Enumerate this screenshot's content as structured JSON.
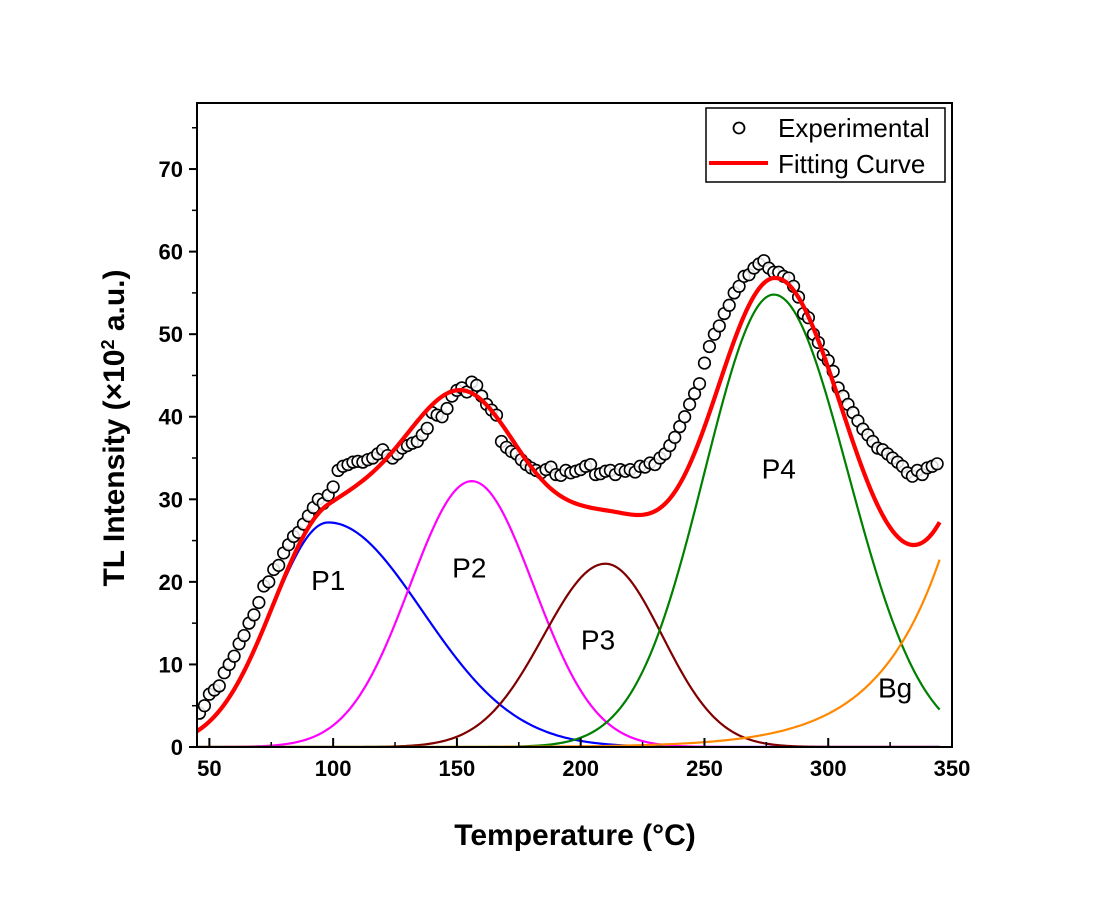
{
  "chart_data": {
    "type": "line",
    "xlabel": "Temperature (°C)",
    "ylabel": {
      "main": "TL Intensity (",
      "mult": "×10",
      "sup": "2",
      "unit": " a.u.)"
    },
    "xlim": [
      45,
      350
    ],
    "ylim": [
      0,
      78
    ],
    "xticks": [
      50,
      100,
      150,
      200,
      250,
      300,
      350
    ],
    "yticks": [
      0,
      10,
      20,
      30,
      40,
      50,
      60,
      70
    ],
    "legend": {
      "position": "top-right",
      "entries": [
        {
          "label": "Experimental",
          "style": "open-circle"
        },
        {
          "label": "Fitting Curve",
          "style": "red-line"
        }
      ]
    },
    "series": [
      {
        "name": "P1",
        "label": "P1",
        "color": "#0000ff",
        "peak": 98,
        "height": 27.2,
        "width_left": 23,
        "width_right": 38,
        "label_x": 98,
        "label_y": 19
      },
      {
        "name": "P2",
        "label": "P2",
        "color": "#ff00ff",
        "peak": 156,
        "height": 32.2,
        "width_left": 25,
        "width_right": 25,
        "label_x": 155,
        "label_y": 20.5
      },
      {
        "name": "P3",
        "label": "P3",
        "color": "#800000",
        "peak": 210,
        "height": 22.2,
        "width_left": 25,
        "width_right": 23,
        "label_x": 207,
        "label_y": 11.8
      },
      {
        "name": "P4",
        "label": "P4",
        "color": "#008000",
        "peak": 278,
        "height": 54.8,
        "width_left": 28,
        "width_right": 30,
        "label_x": 280,
        "label_y": 32.5
      },
      {
        "name": "Bg",
        "label": "Bg",
        "color": "#ff8800",
        "type": "exponential",
        "amplitude": 22.7,
        "x_ref": 345,
        "scale": 26,
        "label_x": 327,
        "label_y": 6
      },
      {
        "name": "Fitting Curve",
        "color": "#ff0000",
        "type": "sum"
      }
    ],
    "experimental": {
      "name": "Experimental",
      "x": [
        46,
        48,
        50,
        52,
        54,
        56,
        58,
        60,
        62,
        64,
        66,
        68,
        70,
        72,
        74,
        76,
        78,
        80,
        82,
        84,
        86,
        88,
        90,
        92,
        94,
        96,
        98,
        100,
        102,
        104,
        106,
        108,
        110,
        112,
        114,
        116,
        118,
        120,
        122,
        124,
        126,
        128,
        130,
        132,
        134,
        136,
        138,
        140,
        142,
        144,
        146,
        148,
        150,
        152,
        154,
        156,
        158,
        160,
        162,
        164,
        166,
        168,
        170,
        172,
        174,
        176,
        178,
        180,
        182,
        184,
        186,
        188,
        190,
        192,
        194,
        196,
        198,
        200,
        202,
        204,
        206,
        208,
        210,
        212,
        214,
        216,
        218,
        220,
        222,
        224,
        226,
        228,
        230,
        232,
        234,
        236,
        238,
        240,
        242,
        244,
        246,
        248,
        250,
        252,
        254,
        256,
        258,
        260,
        262,
        264,
        266,
        268,
        270,
        272,
        274,
        276,
        278,
        280,
        282,
        284,
        286,
        288,
        290,
        292,
        294,
        296,
        298,
        300,
        302,
        304,
        306,
        308,
        310,
        312,
        314,
        316,
        318,
        320,
        322,
        324,
        326,
        328,
        330,
        332,
        334,
        336,
        338,
        340,
        342,
        344
      ],
      "y": [
        4.1,
        5.0,
        6.4,
        6.9,
        7.4,
        9.0,
        10.0,
        11.0,
        12.5,
        13.5,
        15.0,
        16.0,
        17.5,
        19.5,
        20.0,
        21.5,
        22.0,
        23.5,
        24.5,
        25.5,
        26.0,
        27.0,
        28.0,
        29.0,
        30.0,
        29.5,
        30.5,
        31.5,
        33.5,
        34.0,
        34.2,
        34.5,
        34.6,
        34.5,
        34.8,
        35.0,
        35.5,
        36.0,
        35.3,
        35.0,
        35.5,
        36.2,
        36.5,
        36.8,
        37.0,
        37.8,
        38.6,
        40.5,
        40.2,
        40.0,
        41.0,
        42.5,
        43.2,
        43.5,
        43.0,
        44.2,
        43.8,
        42.5,
        41.5,
        40.8,
        40.2,
        37.0,
        36.3,
        35.8,
        35.5,
        34.8,
        34.2,
        33.8,
        33.5,
        33.2,
        33.6,
        33.9,
        33.0,
        32.9,
        33.5,
        33.2,
        33.4,
        33.6,
        34.0,
        34.2,
        33.0,
        33.1,
        33.4,
        33.5,
        33.0,
        33.6,
        33.4,
        33.6,
        33.3,
        34.0,
        33.9,
        34.4,
        34.2,
        35.0,
        35.5,
        36.5,
        37.5,
        38.8,
        40.0,
        41.5,
        42.8,
        44.0,
        46.5,
        48.5,
        50.0,
        51.0,
        52.5,
        53.5,
        55.0,
        55.8,
        57.0,
        57.2,
        58.0,
        58.5,
        58.9,
        58.0,
        57.5,
        57.5,
        57.0,
        56.8,
        55.8,
        54.5,
        52.5,
        52.0,
        50.0,
        49.0,
        47.5,
        46.8,
        45.5,
        43.5,
        42.5,
        41.5,
        40.5,
        39.5,
        38.5,
        37.8,
        37.0,
        36.2,
        36.0,
        35.5,
        35.0,
        34.5,
        34.0,
        33.2,
        32.8,
        33.5,
        33.0,
        33.8,
        34.0,
        34.3
      ]
    }
  }
}
